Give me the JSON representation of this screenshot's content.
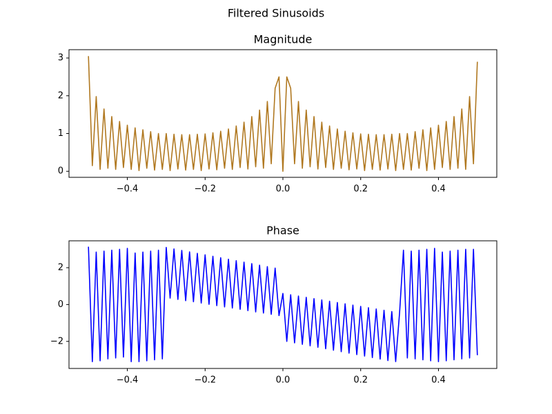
{
  "title": "Filtered Sinusoids",
  "chart_data": [
    {
      "type": "line",
      "title": "Magnitude",
      "color": "#b07820",
      "x": [
        -0.5,
        -0.49,
        -0.48,
        -0.47,
        -0.46,
        -0.45,
        -0.44,
        -0.43,
        -0.42,
        -0.41,
        -0.4,
        -0.39,
        -0.38,
        -0.37,
        -0.36,
        -0.35,
        -0.34,
        -0.33,
        -0.32,
        -0.31,
        -0.3,
        -0.29,
        -0.28,
        -0.27,
        -0.26,
        -0.25,
        -0.24,
        -0.23,
        -0.22,
        -0.21,
        -0.2,
        -0.19,
        -0.18,
        -0.17,
        -0.16,
        -0.15,
        -0.14,
        -0.13,
        -0.12,
        -0.11,
        -0.1,
        -0.09,
        -0.08,
        -0.07,
        -0.06,
        -0.05,
        -0.04,
        -0.03,
        -0.02,
        -0.01,
        0,
        0.01,
        0.02,
        0.03,
        0.04,
        0.05,
        0.06,
        0.07,
        0.08,
        0.09,
        0.1,
        0.11,
        0.12,
        0.13,
        0.14,
        0.15,
        0.16,
        0.17,
        0.18,
        0.19,
        0.2,
        0.21,
        0.22,
        0.23,
        0.24,
        0.25,
        0.26,
        0.27,
        0.28,
        0.29,
        0.3,
        0.31,
        0.32,
        0.33,
        0.34,
        0.35,
        0.36,
        0.37,
        0.38,
        0.39,
        0.4,
        0.41,
        0.42,
        0.43,
        0.44,
        0.45,
        0.46,
        0.47,
        0.48,
        0.49,
        0.5
      ],
      "values": [
        3.05,
        0.15,
        1.98,
        0.05,
        1.65,
        0.08,
        1.45,
        0.05,
        1.32,
        0.1,
        1.22,
        0.05,
        1.15,
        0.02,
        1.1,
        0.08,
        1.05,
        0.03,
        1.0,
        0.05,
        1.0,
        0.02,
        0.98,
        0.06,
        0.97,
        0.03,
        0.97,
        0.05,
        0.98,
        0.02,
        0.99,
        0.06,
        1.02,
        0.04,
        1.06,
        0.08,
        1.12,
        0.05,
        1.2,
        0.1,
        1.3,
        0.06,
        1.45,
        0.12,
        1.62,
        0.08,
        1.85,
        0.2,
        2.2,
        2.5,
        0.0,
        2.5,
        2.2,
        0.2,
        1.85,
        0.08,
        1.62,
        0.12,
        1.45,
        0.06,
        1.3,
        0.1,
        1.2,
        0.05,
        1.12,
        0.08,
        1.06,
        0.04,
        1.02,
        0.06,
        0.99,
        0.02,
        0.98,
        0.05,
        0.97,
        0.03,
        0.97,
        0.06,
        0.98,
        0.02,
        1.0,
        0.05,
        1.0,
        0.03,
        1.05,
        0.08,
        1.1,
        0.02,
        1.15,
        0.05,
        1.22,
        0.1,
        1.32,
        0.05,
        1.45,
        0.08,
        1.65,
        0.05,
        1.98,
        0.2,
        2.9
      ],
      "xlim": [
        -0.55,
        0.55
      ],
      "xticks": [
        {
          "value": -0.4,
          "label": "−0.4"
        },
        {
          "value": -0.2,
          "label": "−0.2"
        },
        {
          "value": 0,
          "label": "0.0"
        },
        0.2,
        0.4
      ],
      "ylim": [
        -0.16,
        3.22
      ],
      "yticks": [
        0,
        1,
        2,
        3
      ]
    },
    {
      "type": "line",
      "title": "Phase",
      "color": "#0000ff",
      "x": [
        -0.5,
        -0.49,
        -0.48,
        -0.47,
        -0.46,
        -0.45,
        -0.44,
        -0.43,
        -0.42,
        -0.41,
        -0.4,
        -0.39,
        -0.38,
        -0.37,
        -0.36,
        -0.35,
        -0.34,
        -0.33,
        -0.32,
        -0.31,
        -0.3,
        -0.29,
        -0.28,
        -0.27,
        -0.26,
        -0.25,
        -0.24,
        -0.23,
        -0.22,
        -0.21,
        -0.2,
        -0.19,
        -0.18,
        -0.17,
        -0.16,
        -0.15,
        -0.14,
        -0.13,
        -0.12,
        -0.11,
        -0.1,
        -0.09,
        -0.08,
        -0.07,
        -0.06,
        -0.05,
        -0.04,
        -0.03,
        -0.02,
        -0.01,
        0,
        0.01,
        0.02,
        0.03,
        0.04,
        0.05,
        0.06,
        0.07,
        0.08,
        0.09,
        0.1,
        0.11,
        0.12,
        0.13,
        0.14,
        0.15,
        0.16,
        0.17,
        0.18,
        0.19,
        0.2,
        0.21,
        0.22,
        0.23,
        0.24,
        0.25,
        0.26,
        0.27,
        0.28,
        0.29,
        0.3,
        0.31,
        0.32,
        0.33,
        0.34,
        0.35,
        0.36,
        0.37,
        0.38,
        0.39,
        0.4,
        0.41,
        0.42,
        0.43,
        0.44,
        0.45,
        0.46,
        0.47,
        0.48,
        0.49,
        0.5
      ],
      "values": [
        3.14,
        -3.1,
        2.85,
        -3.05,
        2.9,
        -2.95,
        2.95,
        -2.9,
        3.0,
        -2.85,
        3.05,
        -3.1,
        2.8,
        -3.1,
        2.85,
        -3.05,
        2.9,
        -3.0,
        2.95,
        -2.95,
        3.1,
        0.35,
        3.02,
        0.28,
        2.94,
        0.21,
        2.86,
        0.15,
        2.78,
        0.08,
        2.7,
        0.01,
        2.62,
        -0.06,
        2.54,
        -0.13,
        2.46,
        -0.19,
        2.38,
        -0.26,
        2.3,
        -0.33,
        2.22,
        -0.4,
        2.14,
        -0.46,
        2.06,
        -0.53,
        1.98,
        -0.6,
        0.6,
        -2.0,
        0.53,
        -2.08,
        0.46,
        -2.16,
        0.39,
        -2.24,
        0.32,
        -2.32,
        0.25,
        -2.4,
        0.18,
        -2.48,
        0.11,
        -2.56,
        0.04,
        -2.64,
        -0.03,
        -2.72,
        -0.1,
        -2.8,
        -0.17,
        -2.88,
        -0.24,
        -2.96,
        -0.31,
        -3.04,
        -0.38,
        -3.1,
        -0.45,
        2.95,
        -2.9,
        2.9,
        -2.95,
        2.95,
        -3.0,
        3.0,
        -3.05,
        3.05,
        -3.1,
        2.85,
        -3.05,
        2.9,
        -3.0,
        2.95,
        -2.95,
        3.0,
        -2.9,
        3.0,
        -2.75
      ],
      "xlim": [
        -0.55,
        0.55
      ],
      "xticks": [
        {
          "value": -0.4,
          "label": "−0.4"
        },
        {
          "value": -0.2,
          "label": "−0.2"
        },
        {
          "value": 0,
          "label": "0.0"
        },
        0.2,
        0.4
      ],
      "ylim": [
        -3.47,
        3.46
      ],
      "yticks": [
        {
          "value": -2,
          "label": "−2"
        },
        0,
        2
      ]
    }
  ]
}
